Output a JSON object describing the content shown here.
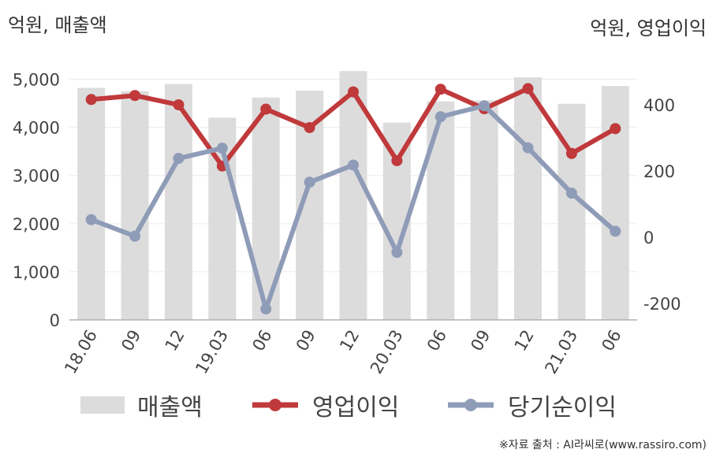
{
  "chart_data": {
    "type": "bar",
    "units": {
      "left": "억원, 매출액",
      "right": "억원, 영업이익"
    },
    "categories": [
      "18.06",
      "09",
      "12",
      "19.03",
      "06",
      "09",
      "12",
      "20.03",
      "06",
      "09",
      "12",
      "21.03",
      "06"
    ],
    "y_left": {
      "ylim": [
        0,
        5500
      ],
      "ticks": [
        0,
        1000,
        2000,
        3000,
        4000,
        5000
      ],
      "tick_labels": [
        "0",
        "1,000",
        "2,000",
        "3,000",
        "4,000",
        "5,000"
      ]
    },
    "y_right": {
      "ylim": [
        -250,
        550
      ],
      "ticks": [
        -200,
        0,
        200,
        400
      ],
      "tick_labels": [
        "-200",
        "0",
        "200",
        "400"
      ]
    },
    "series": [
      {
        "name": "매출액",
        "type": "bar",
        "axis": "left",
        "color": "#dcdcdc",
        "values": [
          4820,
          4750,
          4900,
          4200,
          4620,
          4760,
          5170,
          4100,
          4540,
          4560,
          5040,
          4490,
          4860
        ]
      },
      {
        "name": "영업이익",
        "type": "line",
        "axis": "right",
        "color": "#c0393b",
        "values": [
          416,
          428,
          400,
          215,
          387,
          331,
          439,
          231,
          447,
          388,
          449,
          253,
          328
        ]
      },
      {
        "name": "당기순이익",
        "type": "line",
        "axis": "right",
        "color": "#8f9cb8",
        "values": [
          53,
          3,
          238,
          269,
          -217,
          166,
          218,
          -46,
          364,
          397,
          270,
          133,
          18
        ]
      }
    ],
    "grid": true,
    "legend_position": "bottom"
  },
  "source": "※자료 출처 : AI라씨로(www.rassiro.com)"
}
